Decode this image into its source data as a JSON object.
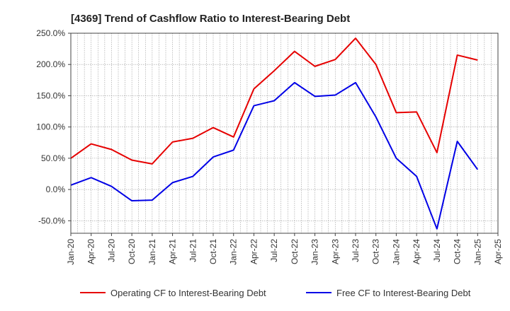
{
  "chart_data": {
    "type": "line",
    "title": "[4369]  Trend of Cashflow Ratio to Interest-Bearing Debt",
    "xlabel": "",
    "ylabel": "",
    "x_ticks": [
      "Jan-20",
      "Apr-20",
      "Jul-20",
      "Oct-20",
      "Jan-21",
      "Apr-21",
      "Jul-21",
      "Oct-21",
      "Jan-22",
      "Apr-22",
      "Jul-22",
      "Oct-22",
      "Jan-23",
      "Apr-23",
      "Jul-23",
      "Oct-23",
      "Jan-24",
      "Apr-24",
      "Jul-24",
      "Oct-24",
      "Jan-25",
      "Apr-25"
    ],
    "y_ticks": [
      "250.0%",
      "200.0%",
      "150.0%",
      "100.0%",
      "50.0%",
      "0.0%",
      "-50.0%"
    ],
    "ylim": [
      -70,
      250
    ],
    "grid": true,
    "legend_position": "bottom",
    "series": [
      {
        "name": "Operating CF to Interest-Bearing Debt",
        "color": "#e60000",
        "values": [
          50,
          73,
          64,
          47,
          41,
          76,
          82,
          99,
          84,
          161,
          190,
          221,
          197,
          208,
          242,
          200,
          123,
          124,
          59,
          215,
          207
        ]
      },
      {
        "name": "Free CF to Interest-Bearing Debt",
        "color": "#0000e6",
        "values": [
          7,
          19,
          5,
          -18,
          -17,
          11,
          21,
          52,
          63,
          134,
          142,
          171,
          149,
          151,
          171,
          116,
          50,
          21,
          -63,
          77,
          32
        ]
      }
    ]
  }
}
